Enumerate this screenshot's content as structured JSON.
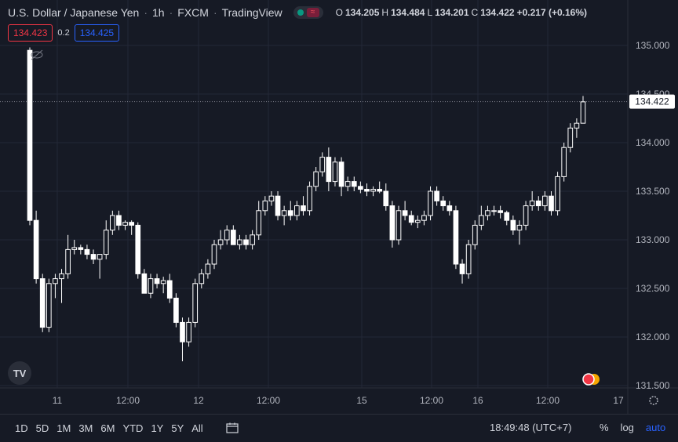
{
  "header": {
    "symbol": "U.S. Dollar / Japanese Yen",
    "interval": "1h",
    "exchange": "FXCM",
    "source": "TradingView",
    "ohlc": {
      "o_label": "O",
      "o": "134.205",
      "h_label": "H",
      "h": "134.484",
      "l_label": "L",
      "l": "134.201",
      "c_label": "C",
      "c": "134.422",
      "change": "+0.217 (+0.16%)"
    }
  },
  "quotes": {
    "bid": "134.423",
    "spread": "0.2",
    "ask": "134.425"
  },
  "colors": {
    "background": "#161a25",
    "grid": "#232837",
    "candle": "#ffffff",
    "bid": "#f23645",
    "ask": "#2962ff",
    "price_tag": "#ffffff"
  },
  "chart_data": {
    "type": "candlestick",
    "y_ticks": [
      "135.000",
      "134.500",
      "134.000",
      "133.500",
      "133.000",
      "132.500",
      "132.000",
      "131.500"
    ],
    "y_tick_values": [
      135.0,
      134.5,
      134.0,
      133.5,
      133.0,
      132.5,
      132.0,
      131.5
    ],
    "ylim": [
      131.4,
      135.3
    ],
    "x_ticks": [
      "11",
      "12:00",
      "12",
      "12:00",
      "15",
      "12:00",
      "16",
      "12:00",
      "17"
    ],
    "current_price": "134.422",
    "candles": [
      [
        134.95,
        134.98,
        133.15,
        133.2
      ],
      [
        133.2,
        133.3,
        132.55,
        132.6
      ],
      [
        132.6,
        132.65,
        132.05,
        132.1
      ],
      [
        132.1,
        132.6,
        132.05,
        132.55
      ],
      [
        132.55,
        132.65,
        132.4,
        132.6
      ],
      [
        132.6,
        132.7,
        132.35,
        132.65
      ],
      [
        132.65,
        133.05,
        132.6,
        132.9
      ],
      [
        132.9,
        133.0,
        132.85,
        132.92
      ],
      [
        132.92,
        132.95,
        132.85,
        132.9
      ],
      [
        132.9,
        132.95,
        132.8,
        132.85
      ],
      [
        132.85,
        132.9,
        132.75,
        132.8
      ],
      [
        132.8,
        132.85,
        132.6,
        132.85
      ],
      [
        132.85,
        133.2,
        132.8,
        133.1
      ],
      [
        133.1,
        133.3,
        133.05,
        133.25
      ],
      [
        133.25,
        133.3,
        133.1,
        133.15
      ],
      [
        133.15,
        133.2,
        133.1,
        133.18
      ],
      [
        133.18,
        133.2,
        133.05,
        133.15
      ],
      [
        133.15,
        133.18,
        132.6,
        132.65
      ],
      [
        132.65,
        132.7,
        132.45,
        132.45
      ],
      [
        132.45,
        132.65,
        132.4,
        132.6
      ],
      [
        132.6,
        132.65,
        132.5,
        132.55
      ],
      [
        132.55,
        132.62,
        132.45,
        132.58
      ],
      [
        132.58,
        132.65,
        132.35,
        132.4
      ],
      [
        132.4,
        132.45,
        132.1,
        132.15
      ],
      [
        132.15,
        132.2,
        131.75,
        131.95
      ],
      [
        131.95,
        132.2,
        131.9,
        132.15
      ],
      [
        132.15,
        132.6,
        132.1,
        132.55
      ],
      [
        132.55,
        132.7,
        132.5,
        132.65
      ],
      [
        132.65,
        132.8,
        132.6,
        132.75
      ],
      [
        132.75,
        133.0,
        132.7,
        132.95
      ],
      [
        132.95,
        133.1,
        132.9,
        133.0
      ],
      [
        133.0,
        133.15,
        132.95,
        133.1
      ],
      [
        133.1,
        133.15,
        132.95,
        132.95
      ],
      [
        132.95,
        133.05,
        132.9,
        133.0
      ],
      [
        133.0,
        133.05,
        132.9,
        132.95
      ],
      [
        132.95,
        133.1,
        132.9,
        133.05
      ],
      [
        133.05,
        133.4,
        133.0,
        133.3
      ],
      [
        133.3,
        133.45,
        133.25,
        133.4
      ],
      [
        133.4,
        133.5,
        133.35,
        133.45
      ],
      [
        133.45,
        133.5,
        133.2,
        133.25
      ],
      [
        133.25,
        133.35,
        133.15,
        133.3
      ],
      [
        133.3,
        133.4,
        133.2,
        133.25
      ],
      [
        133.25,
        133.4,
        133.2,
        133.35
      ],
      [
        133.35,
        133.45,
        133.25,
        133.3
      ],
      [
        133.3,
        133.6,
        133.25,
        133.55
      ],
      [
        133.55,
        133.75,
        133.5,
        133.7
      ],
      [
        133.7,
        133.9,
        133.65,
        133.85
      ],
      [
        133.85,
        133.95,
        133.5,
        133.6
      ],
      [
        133.6,
        133.85,
        133.55,
        133.8
      ],
      [
        133.8,
        133.85,
        133.45,
        133.55
      ],
      [
        133.55,
        133.65,
        133.5,
        133.6
      ],
      [
        133.6,
        133.65,
        133.5,
        133.55
      ],
      [
        133.55,
        133.6,
        133.48,
        133.52
      ],
      [
        133.52,
        133.58,
        133.45,
        133.5
      ],
      [
        133.5,
        133.55,
        133.45,
        133.52
      ],
      [
        133.52,
        133.6,
        133.48,
        133.5
      ],
      [
        133.5,
        133.58,
        133.3,
        133.35
      ],
      [
        133.35,
        133.4,
        132.92,
        133.0
      ],
      [
        133.0,
        133.35,
        132.95,
        133.3
      ],
      [
        133.3,
        133.4,
        133.2,
        133.25
      ],
      [
        133.25,
        133.3,
        133.15,
        133.18
      ],
      [
        133.18,
        133.25,
        133.12,
        133.2
      ],
      [
        133.2,
        133.3,
        133.15,
        133.25
      ],
      [
        133.25,
        133.55,
        133.2,
        133.5
      ],
      [
        133.5,
        133.55,
        133.35,
        133.4
      ],
      [
        133.4,
        133.45,
        133.3,
        133.35
      ],
      [
        133.35,
        133.4,
        133.25,
        133.3
      ],
      [
        133.3,
        133.35,
        132.7,
        132.75
      ],
      [
        132.75,
        132.8,
        132.55,
        132.65
      ],
      [
        132.65,
        133.0,
        132.6,
        132.95
      ],
      [
        132.95,
        133.2,
        132.9,
        133.15
      ],
      [
        133.15,
        133.35,
        133.1,
        133.25
      ],
      [
        133.25,
        133.35,
        133.2,
        133.3
      ],
      [
        133.3,
        133.35,
        133.25,
        133.3
      ],
      [
        133.3,
        133.35,
        133.22,
        133.28
      ],
      [
        133.28,
        133.3,
        133.15,
        133.2
      ],
      [
        133.2,
        133.25,
        133.05,
        133.1
      ],
      [
        133.1,
        133.2,
        132.95,
        133.15
      ],
      [
        133.15,
        133.4,
        133.1,
        133.35
      ],
      [
        133.35,
        133.5,
        133.3,
        133.4
      ],
      [
        133.4,
        133.45,
        133.3,
        133.35
      ],
      [
        133.35,
        133.5,
        133.3,
        133.45
      ],
      [
        133.45,
        133.5,
        133.25,
        133.3
      ],
      [
        133.3,
        133.7,
        133.25,
        133.65
      ],
      [
        133.65,
        134.0,
        133.6,
        133.95
      ],
      [
        133.95,
        134.2,
        133.9,
        134.15
      ],
      [
        134.15,
        134.25,
        134.05,
        134.2
      ],
      [
        134.2,
        134.48,
        134.2,
        134.42
      ]
    ]
  },
  "toolbar": {
    "ranges": [
      "1D",
      "5D",
      "1M",
      "3M",
      "6M",
      "YTD",
      "1Y",
      "5Y",
      "All"
    ],
    "time": "18:49:48 (UTC+7)",
    "percent_label": "%",
    "log_label": "log",
    "auto_label": "auto"
  },
  "watermark": "TV"
}
